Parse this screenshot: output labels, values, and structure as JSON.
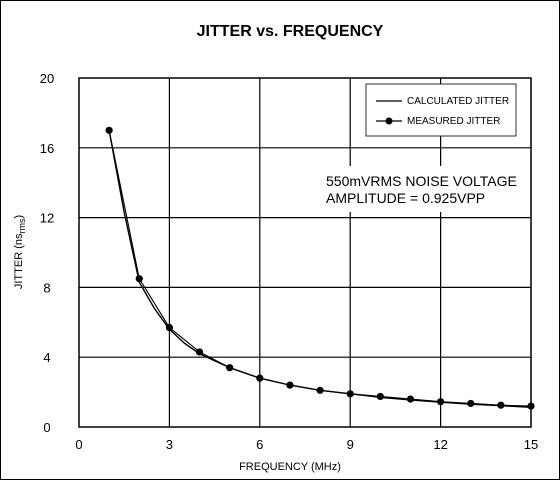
{
  "chart_data": {
    "type": "line",
    "title": "JITTER vs. FREQUENCY",
    "xlabel": "FREQUENCY (MHz)",
    "ylabel": {
      "main": "JITTER (ns",
      "sub": "rms",
      "close": ")"
    },
    "xlim": [
      0,
      15
    ],
    "ylim": [
      0,
      20
    ],
    "x_ticks": [
      0,
      3,
      6,
      9,
      12,
      15
    ],
    "y_ticks": [
      0,
      4,
      8,
      12,
      16,
      20
    ],
    "grid": true,
    "legend_position": "top-right",
    "series": [
      {
        "name": "CALCULATED JITTER",
        "style": "line",
        "x": [
          1.0,
          1.5,
          2.0,
          2.5,
          3.0,
          3.5,
          4.0,
          4.5,
          5.0,
          5.5,
          6.0,
          7.0,
          8.0,
          9.0,
          10.0,
          11.0,
          12.0,
          13.0,
          14.0,
          15.0
        ],
        "y": [
          17.0,
          12.3,
          8.3,
          6.8,
          5.6,
          4.8,
          4.2,
          3.8,
          3.4,
          3.1,
          2.8,
          2.4,
          2.1,
          1.9,
          1.7,
          1.55,
          1.42,
          1.31,
          1.22,
          1.13
        ]
      },
      {
        "name": "MEASURED JITTER",
        "style": "line-marker",
        "x": [
          1,
          2,
          3,
          4,
          5,
          6,
          7,
          8,
          9,
          10,
          11,
          12,
          13,
          14,
          15
        ],
        "y": [
          17.0,
          8.5,
          5.7,
          4.3,
          3.4,
          2.8,
          2.4,
          2.1,
          1.9,
          1.75,
          1.6,
          1.45,
          1.35,
          1.25,
          1.2
        ]
      }
    ],
    "annotation": [
      "550mVRMS NOISE VOLTAGE",
      "AMPLITUDE = 0.925VPP"
    ],
    "colors": {
      "line": "#000000",
      "grid": "#000000",
      "background": "#ffffff"
    }
  }
}
